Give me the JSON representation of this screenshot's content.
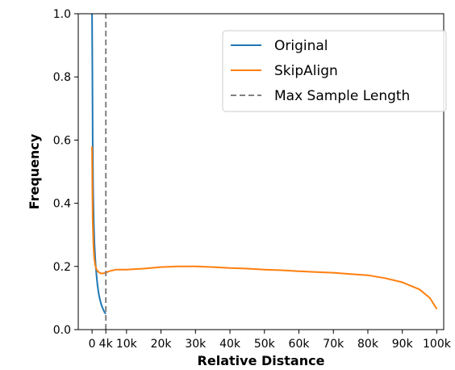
{
  "chart_data": {
    "type": "line",
    "xlabel": "Relative Distance",
    "ylabel": "Frequency",
    "xlim": [
      -4000,
      102000
    ],
    "ylim": [
      0.0,
      1.0
    ],
    "x_ticks": [
      {
        "value": 0,
        "label": "0"
      },
      {
        "value": 4000,
        "label": "4k"
      },
      {
        "value": 10000,
        "label": "10k"
      },
      {
        "value": 20000,
        "label": "20k"
      },
      {
        "value": 30000,
        "label": "30k"
      },
      {
        "value": 40000,
        "label": "40k"
      },
      {
        "value": 50000,
        "label": "50k"
      },
      {
        "value": 60000,
        "label": "60k"
      },
      {
        "value": 70000,
        "label": "70k"
      },
      {
        "value": 80000,
        "label": "80k"
      },
      {
        "value": 90000,
        "label": "90k"
      },
      {
        "value": 100000,
        "label": "100k"
      }
    ],
    "y_ticks": [
      {
        "value": 0.0,
        "label": "0.0"
      },
      {
        "value": 0.2,
        "label": "0.2"
      },
      {
        "value": 0.4,
        "label": "0.4"
      },
      {
        "value": 0.6,
        "label": "0.6"
      },
      {
        "value": 0.8,
        "label": "0.8"
      },
      {
        "value": 1.0,
        "label": "1.0"
      }
    ],
    "grid": false,
    "legend_position": "top-right",
    "series": [
      {
        "name": "Original",
        "color": "#1f77b4",
        "style": "solid",
        "x": [
          0,
          100,
          200,
          300,
          500,
          700,
          1000,
          1300,
          1600,
          2000,
          2400,
          2800,
          3200,
          3600,
          4000
        ],
        "y": [
          1.0,
          0.82,
          0.6,
          0.45,
          0.34,
          0.27,
          0.21,
          0.17,
          0.14,
          0.11,
          0.09,
          0.075,
          0.065,
          0.055,
          0.05
        ]
      },
      {
        "name": "SkipAlign",
        "color": "#ff7f0e",
        "style": "solid",
        "x": [
          0,
          100,
          200,
          400,
          600,
          900,
          1300,
          1800,
          2500,
          3200,
          4000,
          5000,
          7000,
          10000,
          15000,
          20000,
          25000,
          30000,
          35000,
          40000,
          45000,
          50000,
          55000,
          60000,
          65000,
          70000,
          75000,
          80000,
          85000,
          90000,
          95000,
          98000,
          100000
        ],
        "y": [
          0.58,
          0.45,
          0.35,
          0.27,
          0.23,
          0.205,
          0.19,
          0.183,
          0.178,
          0.178,
          0.18,
          0.185,
          0.19,
          0.19,
          0.193,
          0.198,
          0.2,
          0.2,
          0.198,
          0.195,
          0.193,
          0.19,
          0.188,
          0.185,
          0.182,
          0.18,
          0.176,
          0.172,
          0.163,
          0.15,
          0.127,
          0.1,
          0.065
        ]
      },
      {
        "name": "Max Sample Length",
        "color": "#808080",
        "style": "dashed",
        "x": [
          4000,
          4000
        ],
        "y": [
          0.0,
          1.0
        ]
      }
    ]
  }
}
